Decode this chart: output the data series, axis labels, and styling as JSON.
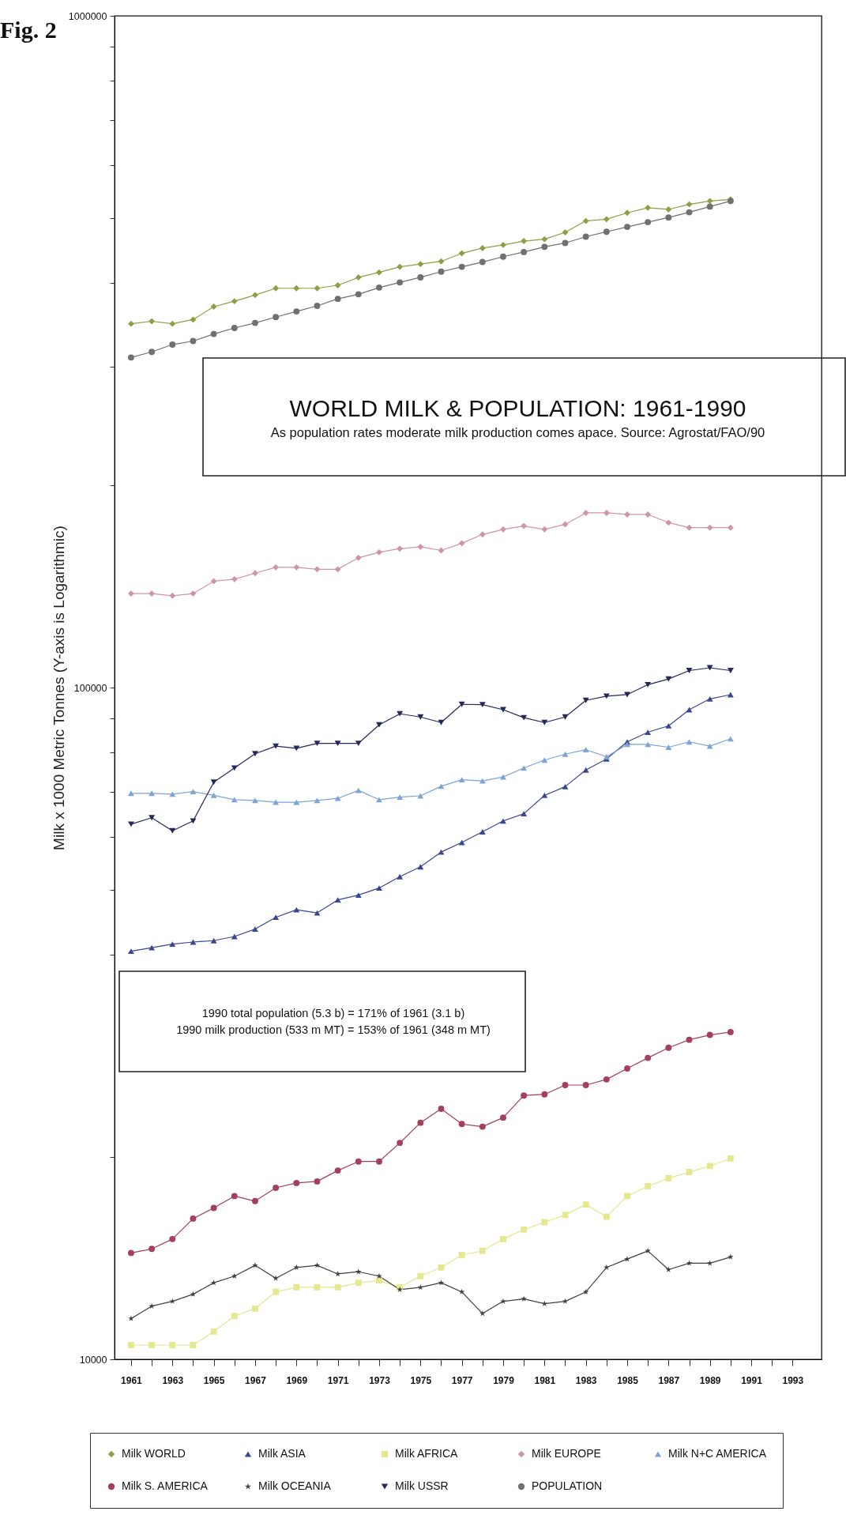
{
  "chart_data": {
    "type": "line",
    "title": "WORLD MILK & POPULATION: 1961-1990",
    "subtitle": "As population rates moderate milk production comes apace.  Source: Agrostat/FAO/90",
    "ylabel": "Milk x 1000 Metric Tonnes (Y-axis is Logarithmic)",
    "annotations": [
      "Fig. 2",
      "1990 total population (5.3 b) = 171% of 1961 (3.1 b)",
      "1990 milk production (533 m MT) = 153% of 1961 (348 m MT)"
    ],
    "x": [
      1961,
      1962,
      1963,
      1964,
      1965,
      1966,
      1967,
      1968,
      1969,
      1970,
      1971,
      1972,
      1973,
      1974,
      1975,
      1976,
      1977,
      1978,
      1979,
      1980,
      1981,
      1982,
      1983,
      1984,
      1985,
      1986,
      1987,
      1988,
      1989,
      1990
    ],
    "xlim": [
      1960.2,
      1994.4
    ],
    "xticks": [
      1961,
      {
        "value": 1962,
        "label": null
      },
      1963,
      {
        "value": 1964,
        "label": null
      },
      1965,
      {
        "value": 1966,
        "label": null
      },
      1967,
      {
        "value": 1968,
        "label": null
      },
      1969,
      {
        "value": 1970,
        "label": null
      },
      1971,
      {
        "value": 1972,
        "label": null
      },
      1973,
      {
        "value": 1974,
        "label": null
      },
      1975,
      {
        "value": 1976,
        "label": null
      },
      1977,
      {
        "value": 1978,
        "label": null
      },
      1979,
      {
        "value": 1980,
        "label": null
      },
      1981,
      {
        "value": 1982,
        "label": null
      },
      1983,
      {
        "value": 1984,
        "label": null
      },
      1985,
      {
        "value": 1986,
        "label": null
      },
      1987,
      {
        "value": 1988,
        "label": null
      },
      1989,
      {
        "value": 1990,
        "label": null
      },
      1991,
      {
        "value": 1992,
        "label": null
      },
      1993
    ],
    "log": true,
    "ylim": [
      10000,
      1000000
    ],
    "yticks": [
      10000,
      {
        "value": 20000,
        "label": null
      },
      {
        "value": 40000,
        "label": null
      },
      {
        "value": 50000,
        "label": null
      },
      {
        "value": 60000,
        "label": null
      },
      {
        "value": 70000,
        "label": null
      },
      {
        "value": 80000,
        "label": null
      },
      {
        "value": 90000,
        "label": null
      },
      100000,
      {
        "value": 200000,
        "label": null
      },
      {
        "value": 300000,
        "label": null
      },
      {
        "value": 400000,
        "label": null
      },
      {
        "value": 500000,
        "label": null
      },
      {
        "value": 600000,
        "label": null
      },
      {
        "value": 700000,
        "label": null
      },
      {
        "value": 800000,
        "label": null
      },
      {
        "value": 900000,
        "label": null
      },
      1000000
    ],
    "grid": false,
    "legend": "bottom",
    "line_style": "solid",
    "series": [
      {
        "name": "Milk WORLD",
        "color": "#8c9f45",
        "marker": "diamond",
        "values": [
          348000,
          351000,
          348000,
          353000,
          369000,
          376000,
          384000,
          393000,
          393000,
          393000,
          397000,
          408000,
          415000,
          423000,
          427000,
          431000,
          443000,
          451000,
          456000,
          462000,
          465000,
          476000,
          495000,
          498000,
          509000,
          518000,
          515000,
          524000,
          530000,
          533000
        ]
      },
      {
        "name": "Milk ASIA",
        "color": "#3a4690",
        "marker": "triangle",
        "values": [
          40500,
          41000,
          41500,
          41800,
          42000,
          42600,
          43700,
          45500,
          46700,
          46200,
          48300,
          49100,
          50300,
          52300,
          54100,
          56900,
          58800,
          61000,
          63300,
          64900,
          69100,
          71200,
          75400,
          78300,
          83000,
          85800,
          87700,
          92700,
          96200,
          97600
        ]
      },
      {
        "name": "Milk AFRICA",
        "color": "#e4e88e",
        "marker": "square",
        "values": [
          10500,
          10500,
          10500,
          10500,
          11000,
          11600,
          11900,
          12600,
          12800,
          12800,
          12800,
          13000,
          13100,
          12800,
          13300,
          13700,
          14300,
          14500,
          15100,
          15600,
          16000,
          16400,
          17000,
          16300,
          17500,
          18100,
          18600,
          19000,
          19400,
          19900
        ]
      },
      {
        "name": "Milk EUROPE",
        "color": "#cf94a8",
        "marker": "diamond",
        "values": [
          138000,
          138000,
          137000,
          138000,
          144000,
          145000,
          148000,
          151000,
          151000,
          150000,
          150000,
          156000,
          159000,
          161000,
          162000,
          160000,
          164000,
          169000,
          172000,
          174000,
          172000,
          175000,
          182000,
          182000,
          181000,
          181000,
          176000,
          173000,
          173000,
          173000
        ]
      },
      {
        "name": "Milk N+C AMERICA",
        "color": "#7da4d4",
        "marker": "triangle",
        "values": [
          69600,
          69600,
          69400,
          70000,
          69100,
          68100,
          67900,
          67500,
          67500,
          67900,
          68400,
          70300,
          68100,
          68700,
          69000,
          71300,
          72900,
          72600,
          73600,
          75900,
          78000,
          79600,
          80800,
          78900,
          82300,
          82300,
          81500,
          83000,
          81800,
          83900
        ]
      },
      {
        "name": "Milk S. AMERICA",
        "color": "#a3405c",
        "marker": "circle",
        "values": [
          14400,
          14600,
          15100,
          16200,
          16800,
          17500,
          17200,
          18000,
          18300,
          18400,
          19100,
          19700,
          19700,
          21000,
          22500,
          23600,
          22400,
          22200,
          22900,
          24700,
          24800,
          25600,
          25600,
          26100,
          27100,
          28100,
          29100,
          29900,
          30400,
          30700
        ]
      },
      {
        "name": "Milk OCEANIA",
        "color": "#404040",
        "marker": "star",
        "values": [
          11500,
          12000,
          12200,
          12500,
          13000,
          13300,
          13800,
          13200,
          13700,
          13800,
          13400,
          13500,
          13300,
          12700,
          12800,
          13000,
          12600,
          11700,
          12200,
          12300,
          12100,
          12200,
          12600,
          13700,
          14100,
          14500,
          13600,
          13900,
          13900,
          14200
        ]
      },
      {
        "name": "Milk USSR",
        "color": "#24285a",
        "marker": "triangle-down",
        "values": [
          62600,
          64000,
          61200,
          63300,
          72300,
          75900,
          79700,
          81800,
          81200,
          82600,
          82600,
          82600,
          88000,
          91400,
          90400,
          88700,
          94400,
          94300,
          92700,
          90200,
          88700,
          90400,
          95700,
          97100,
          97600,
          101000,
          103000,
          106000,
          107000,
          106000
        ]
      },
      {
        "name": "POPULATION",
        "color": "#707070",
        "marker": "circle",
        "values": [
          310000,
          316000,
          324000,
          328000,
          336000,
          343000,
          349000,
          356000,
          363000,
          370000,
          379000,
          385000,
          394000,
          401000,
          408000,
          416000,
          423000,
          430000,
          438000,
          445000,
          453000,
          459000,
          469000,
          477000,
          485000,
          493000,
          501000,
          510000,
          520000,
          530000
        ]
      }
    ]
  }
}
